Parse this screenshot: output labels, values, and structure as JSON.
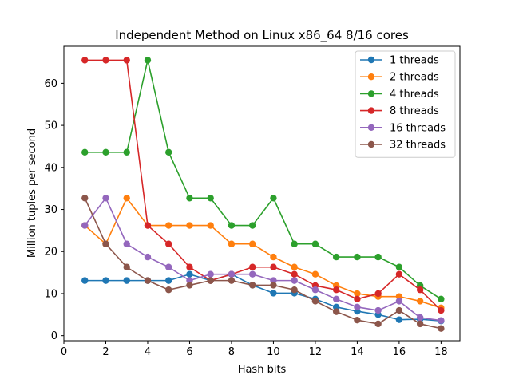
{
  "chart_data": {
    "type": "line",
    "title": "Independent Method on Linux x86_64 8/16 cores",
    "xlabel": "Hash bits",
    "ylabel": "Million tuples per second",
    "xlim": [
      0,
      18.9
    ],
    "ylim": [
      -1.2,
      68.8
    ],
    "xticks": [
      0,
      2,
      4,
      6,
      8,
      10,
      12,
      14,
      16,
      18
    ],
    "yticks": [
      0,
      10,
      20,
      30,
      40,
      50,
      60
    ],
    "grid": false,
    "legend_position": "top-right",
    "x": [
      1,
      2,
      3,
      4,
      5,
      6,
      7,
      8,
      9,
      10,
      11,
      12,
      13,
      14,
      15,
      16,
      17,
      18
    ],
    "series": [
      {
        "name": "1 threads",
        "color": "#1f77b4",
        "values": [
          13.1,
          13.1,
          13.1,
          13.1,
          13.1,
          14.6,
          13.1,
          14.6,
          12.0,
          10.1,
          10.1,
          8.7,
          6.8,
          5.8,
          5.0,
          3.8,
          3.9,
          3.5
        ]
      },
      {
        "name": "2 threads",
        "color": "#ff7f0e",
        "values": [
          26.2,
          21.8,
          32.7,
          26.2,
          26.2,
          26.2,
          26.2,
          21.8,
          21.8,
          18.7,
          16.3,
          14.6,
          11.9,
          10.0,
          9.3,
          9.3,
          8.2,
          6.6
        ]
      },
      {
        "name": "4 threads",
        "color": "#2ca02c",
        "values": [
          43.6,
          43.6,
          43.6,
          65.5,
          43.6,
          32.7,
          32.7,
          26.2,
          26.2,
          32.7,
          21.8,
          21.8,
          18.7,
          18.7,
          18.7,
          16.3,
          11.9,
          8.7
        ]
      },
      {
        "name": "8 threads",
        "color": "#d62728",
        "values": [
          65.5,
          65.5,
          65.5,
          26.2,
          21.8,
          16.3,
          13.1,
          14.6,
          16.3,
          16.3,
          14.6,
          11.9,
          10.9,
          8.7,
          10.0,
          14.6,
          10.9,
          6.0
        ]
      },
      {
        "name": "16 threads",
        "color": "#9467bd",
        "values": [
          26.2,
          32.7,
          21.8,
          18.7,
          16.3,
          13.1,
          14.6,
          14.6,
          14.6,
          13.1,
          13.1,
          10.9,
          8.7,
          6.8,
          6.0,
          8.2,
          4.3,
          3.6
        ]
      },
      {
        "name": "32 threads",
        "color": "#8c564b",
        "values": [
          32.7,
          21.8,
          16.3,
          13.1,
          10.9,
          12.0,
          13.1,
          13.1,
          12.0,
          12.0,
          10.9,
          8.2,
          5.7,
          3.7,
          2.8,
          6.0,
          2.8,
          1.7
        ]
      }
    ]
  }
}
